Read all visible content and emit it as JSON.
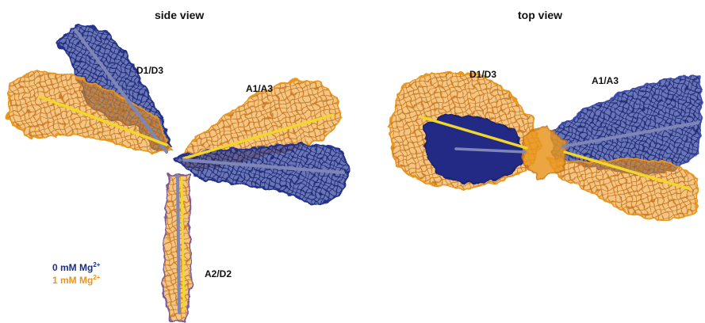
{
  "views": {
    "side": {
      "title": "side view",
      "arms": [
        "D1/D3",
        "A1/A3",
        "A2/D2"
      ]
    },
    "top": {
      "title": "top view",
      "arms": [
        "D1/D3",
        "A1/A3"
      ]
    }
  },
  "legend": [
    {
      "text": "0 mM Mg",
      "superscript": "2+",
      "color": "#1f2e80"
    },
    {
      "text": "1 mM Mg",
      "superscript": "2+",
      "color": "#e8961e"
    }
  ],
  "colors": {
    "state_0mM": "#23338c",
    "state_1mM": "#e8961e",
    "axis_0mM": "#7e86b8",
    "axis_1mM": "#f2d62a"
  }
}
